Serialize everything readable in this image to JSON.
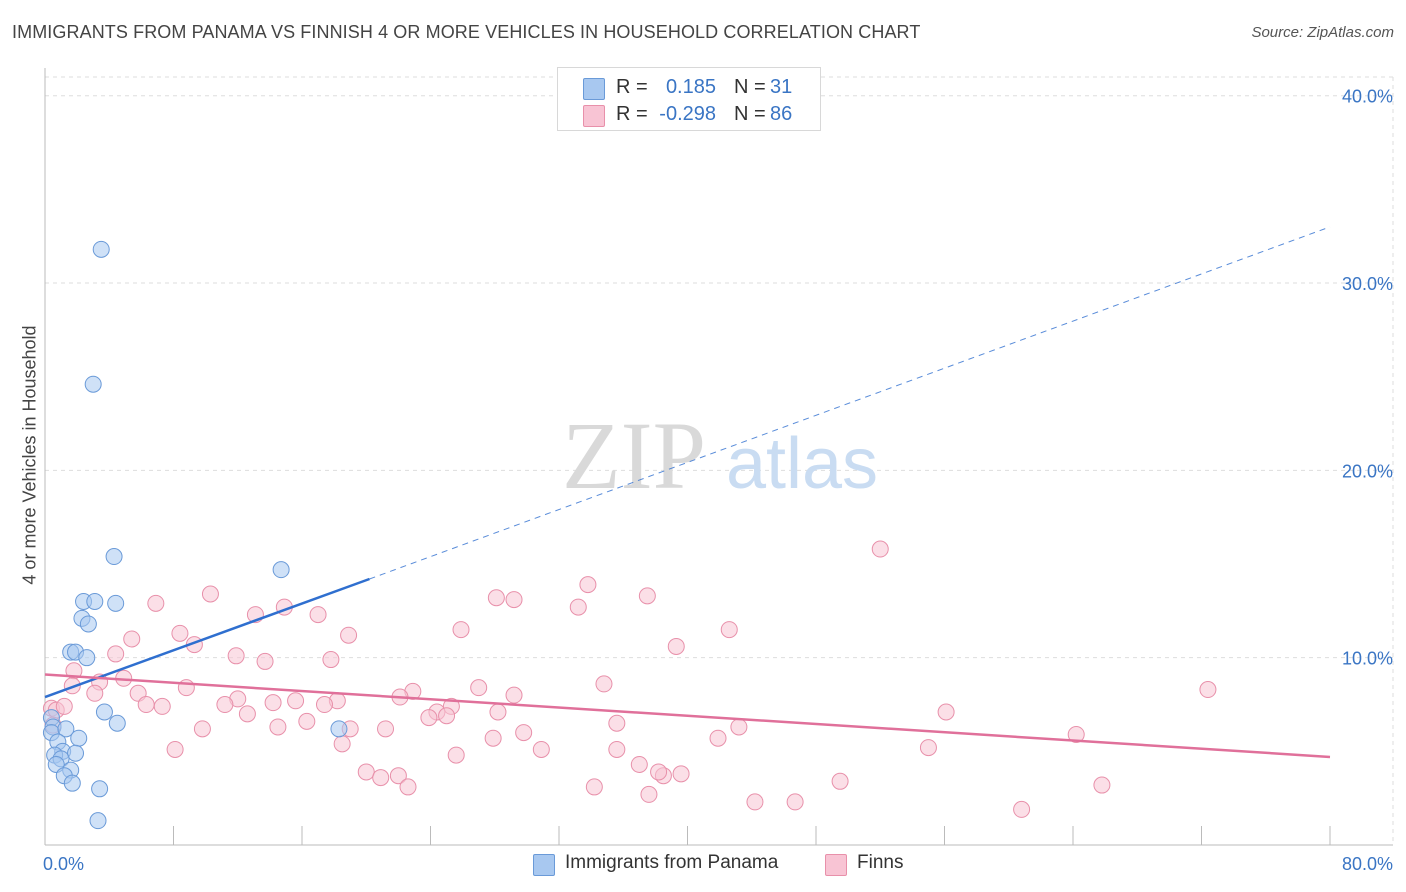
{
  "title": "IMMIGRANTS FROM PANAMA VS FINNISH 4 OR MORE VEHICLES IN HOUSEHOLD CORRELATION CHART",
  "source": "Source: ZipAtlas.com",
  "watermark": {
    "zip": "ZIP",
    "atlas": "atlas"
  },
  "stats": [
    {
      "r_label": "R =",
      "r_value": "0.185",
      "n_label": "N =",
      "n_value": "31",
      "color": "#a8c8f0",
      "border": "#6a9ad8"
    },
    {
      "r_label": "R =",
      "r_value": "-0.298",
      "n_label": "N =",
      "n_value": "86",
      "color": "#f8c4d4",
      "border": "#e890aa"
    }
  ],
  "legend": [
    {
      "label": "Immigrants from Panama",
      "color": "#a8c8f0",
      "border": "#6a9ad8"
    },
    {
      "label": "Finns",
      "color": "#f8c4d4",
      "border": "#e890aa"
    }
  ],
  "chart_data": {
    "type": "scatter",
    "title": "IMMIGRANTS FROM PANAMA VS FINNISH 4 OR MORE VEHICLES IN HOUSEHOLD CORRELATION CHART",
    "xlabel": "",
    "ylabel": "4 or more Vehicles in Household",
    "xlim": [
      0,
      80
    ],
    "ylim": [
      0,
      41
    ],
    "x_tick_labels": [
      "0.0%",
      "80.0%"
    ],
    "y_ticks": [
      10,
      20,
      30,
      40
    ],
    "y_tick_labels": [
      "10.0%",
      "20.0%",
      "30.0%",
      "40.0%"
    ],
    "grid": true,
    "series": [
      {
        "name": "Immigrants from Panama",
        "color": "#a8c8f0",
        "stroke": "#6a9ad8",
        "line_color": "#2f6fcf",
        "trend": {
          "x0": 0.0,
          "y0": 7.9,
          "x1": 20.2,
          "y1": 14.2,
          "dashed_to_x": 80.0,
          "dashed_to_y": 33.0
        },
        "points": [
          [
            3.5,
            31.8
          ],
          [
            3.0,
            24.6
          ],
          [
            4.3,
            15.4
          ],
          [
            14.7,
            14.7
          ],
          [
            2.4,
            13.0
          ],
          [
            3.1,
            13.0
          ],
          [
            4.4,
            12.9
          ],
          [
            2.3,
            12.1
          ],
          [
            2.7,
            11.8
          ],
          [
            1.6,
            10.3
          ],
          [
            1.9,
            10.3
          ],
          [
            2.6,
            10.0
          ],
          [
            0.4,
            6.8
          ],
          [
            0.5,
            6.3
          ],
          [
            0.4,
            6.0
          ],
          [
            1.3,
            6.2
          ],
          [
            3.7,
            7.1
          ],
          [
            4.5,
            6.5
          ],
          [
            18.3,
            6.2
          ],
          [
            0.8,
            5.5
          ],
          [
            2.1,
            5.7
          ],
          [
            1.1,
            5.0
          ],
          [
            1.9,
            4.9
          ],
          [
            0.6,
            4.8
          ],
          [
            1.0,
            4.6
          ],
          [
            0.7,
            4.3
          ],
          [
            1.6,
            4.0
          ],
          [
            1.2,
            3.7
          ],
          [
            1.7,
            3.3
          ],
          [
            3.4,
            3.0
          ],
          [
            3.3,
            1.3
          ]
        ]
      },
      {
        "name": "Finns",
        "color": "#f8c4d4",
        "stroke": "#e890aa",
        "line_color": "#e0709a",
        "trend": {
          "x0": 0.0,
          "y0": 9.1,
          "x1": 80.0,
          "y1": 4.7
        },
        "points": [
          [
            52.0,
            15.8
          ],
          [
            33.8,
            13.9
          ],
          [
            10.3,
            13.4
          ],
          [
            37.5,
            13.3
          ],
          [
            28.1,
            13.2
          ],
          [
            29.2,
            13.1
          ],
          [
            6.9,
            12.9
          ],
          [
            14.9,
            12.7
          ],
          [
            13.1,
            12.3
          ],
          [
            17.0,
            12.3
          ],
          [
            33.2,
            12.7
          ],
          [
            42.6,
            11.5
          ],
          [
            25.9,
            11.5
          ],
          [
            8.4,
            11.3
          ],
          [
            18.9,
            11.2
          ],
          [
            5.4,
            11.0
          ],
          [
            9.3,
            10.7
          ],
          [
            39.3,
            10.6
          ],
          [
            4.4,
            10.2
          ],
          [
            11.9,
            10.1
          ],
          [
            13.7,
            9.8
          ],
          [
            17.8,
            9.9
          ],
          [
            1.8,
            9.3
          ],
          [
            1.7,
            8.5
          ],
          [
            3.4,
            8.7
          ],
          [
            4.9,
            8.9
          ],
          [
            8.8,
            8.4
          ],
          [
            3.1,
            8.1
          ],
          [
            5.8,
            8.1
          ],
          [
            22.9,
            8.2
          ],
          [
            27.0,
            8.4
          ],
          [
            34.8,
            8.6
          ],
          [
            29.2,
            8.0
          ],
          [
            72.4,
            8.3
          ],
          [
            22.1,
            7.9
          ],
          [
            12.0,
            7.8
          ],
          [
            14.2,
            7.6
          ],
          [
            15.6,
            7.7
          ],
          [
            18.2,
            7.7
          ],
          [
            6.3,
            7.5
          ],
          [
            0.4,
            7.3
          ],
          [
            0.7,
            7.2
          ],
          [
            1.2,
            7.4
          ],
          [
            7.3,
            7.4
          ],
          [
            11.2,
            7.5
          ],
          [
            17.4,
            7.5
          ],
          [
            25.3,
            7.4
          ],
          [
            24.4,
            7.1
          ],
          [
            23.9,
            6.8
          ],
          [
            25.0,
            6.9
          ],
          [
            28.2,
            7.1
          ],
          [
            56.1,
            7.1
          ],
          [
            12.6,
            7.0
          ],
          [
            16.3,
            6.6
          ],
          [
            35.6,
            6.5
          ],
          [
            0.5,
            6.4
          ],
          [
            9.8,
            6.2
          ],
          [
            14.5,
            6.3
          ],
          [
            19.0,
            6.2
          ],
          [
            21.2,
            6.2
          ],
          [
            29.8,
            6.0
          ],
          [
            64.2,
            5.9
          ],
          [
            43.2,
            6.3
          ],
          [
            41.9,
            5.7
          ],
          [
            27.9,
            5.7
          ],
          [
            18.5,
            5.4
          ],
          [
            8.1,
            5.1
          ],
          [
            30.9,
            5.1
          ],
          [
            35.6,
            5.1
          ],
          [
            55.0,
            5.2
          ],
          [
            25.6,
            4.8
          ],
          [
            37.0,
            4.3
          ],
          [
            20.0,
            3.9
          ],
          [
            20.9,
            3.6
          ],
          [
            22.0,
            3.7
          ],
          [
            38.5,
            3.7
          ],
          [
            39.6,
            3.8
          ],
          [
            38.2,
            3.9
          ],
          [
            49.5,
            3.4
          ],
          [
            65.8,
            3.2
          ],
          [
            34.2,
            3.1
          ],
          [
            22.6,
            3.1
          ],
          [
            37.6,
            2.7
          ],
          [
            44.2,
            2.3
          ],
          [
            46.7,
            2.3
          ],
          [
            60.8,
            1.9
          ]
        ]
      }
    ]
  }
}
